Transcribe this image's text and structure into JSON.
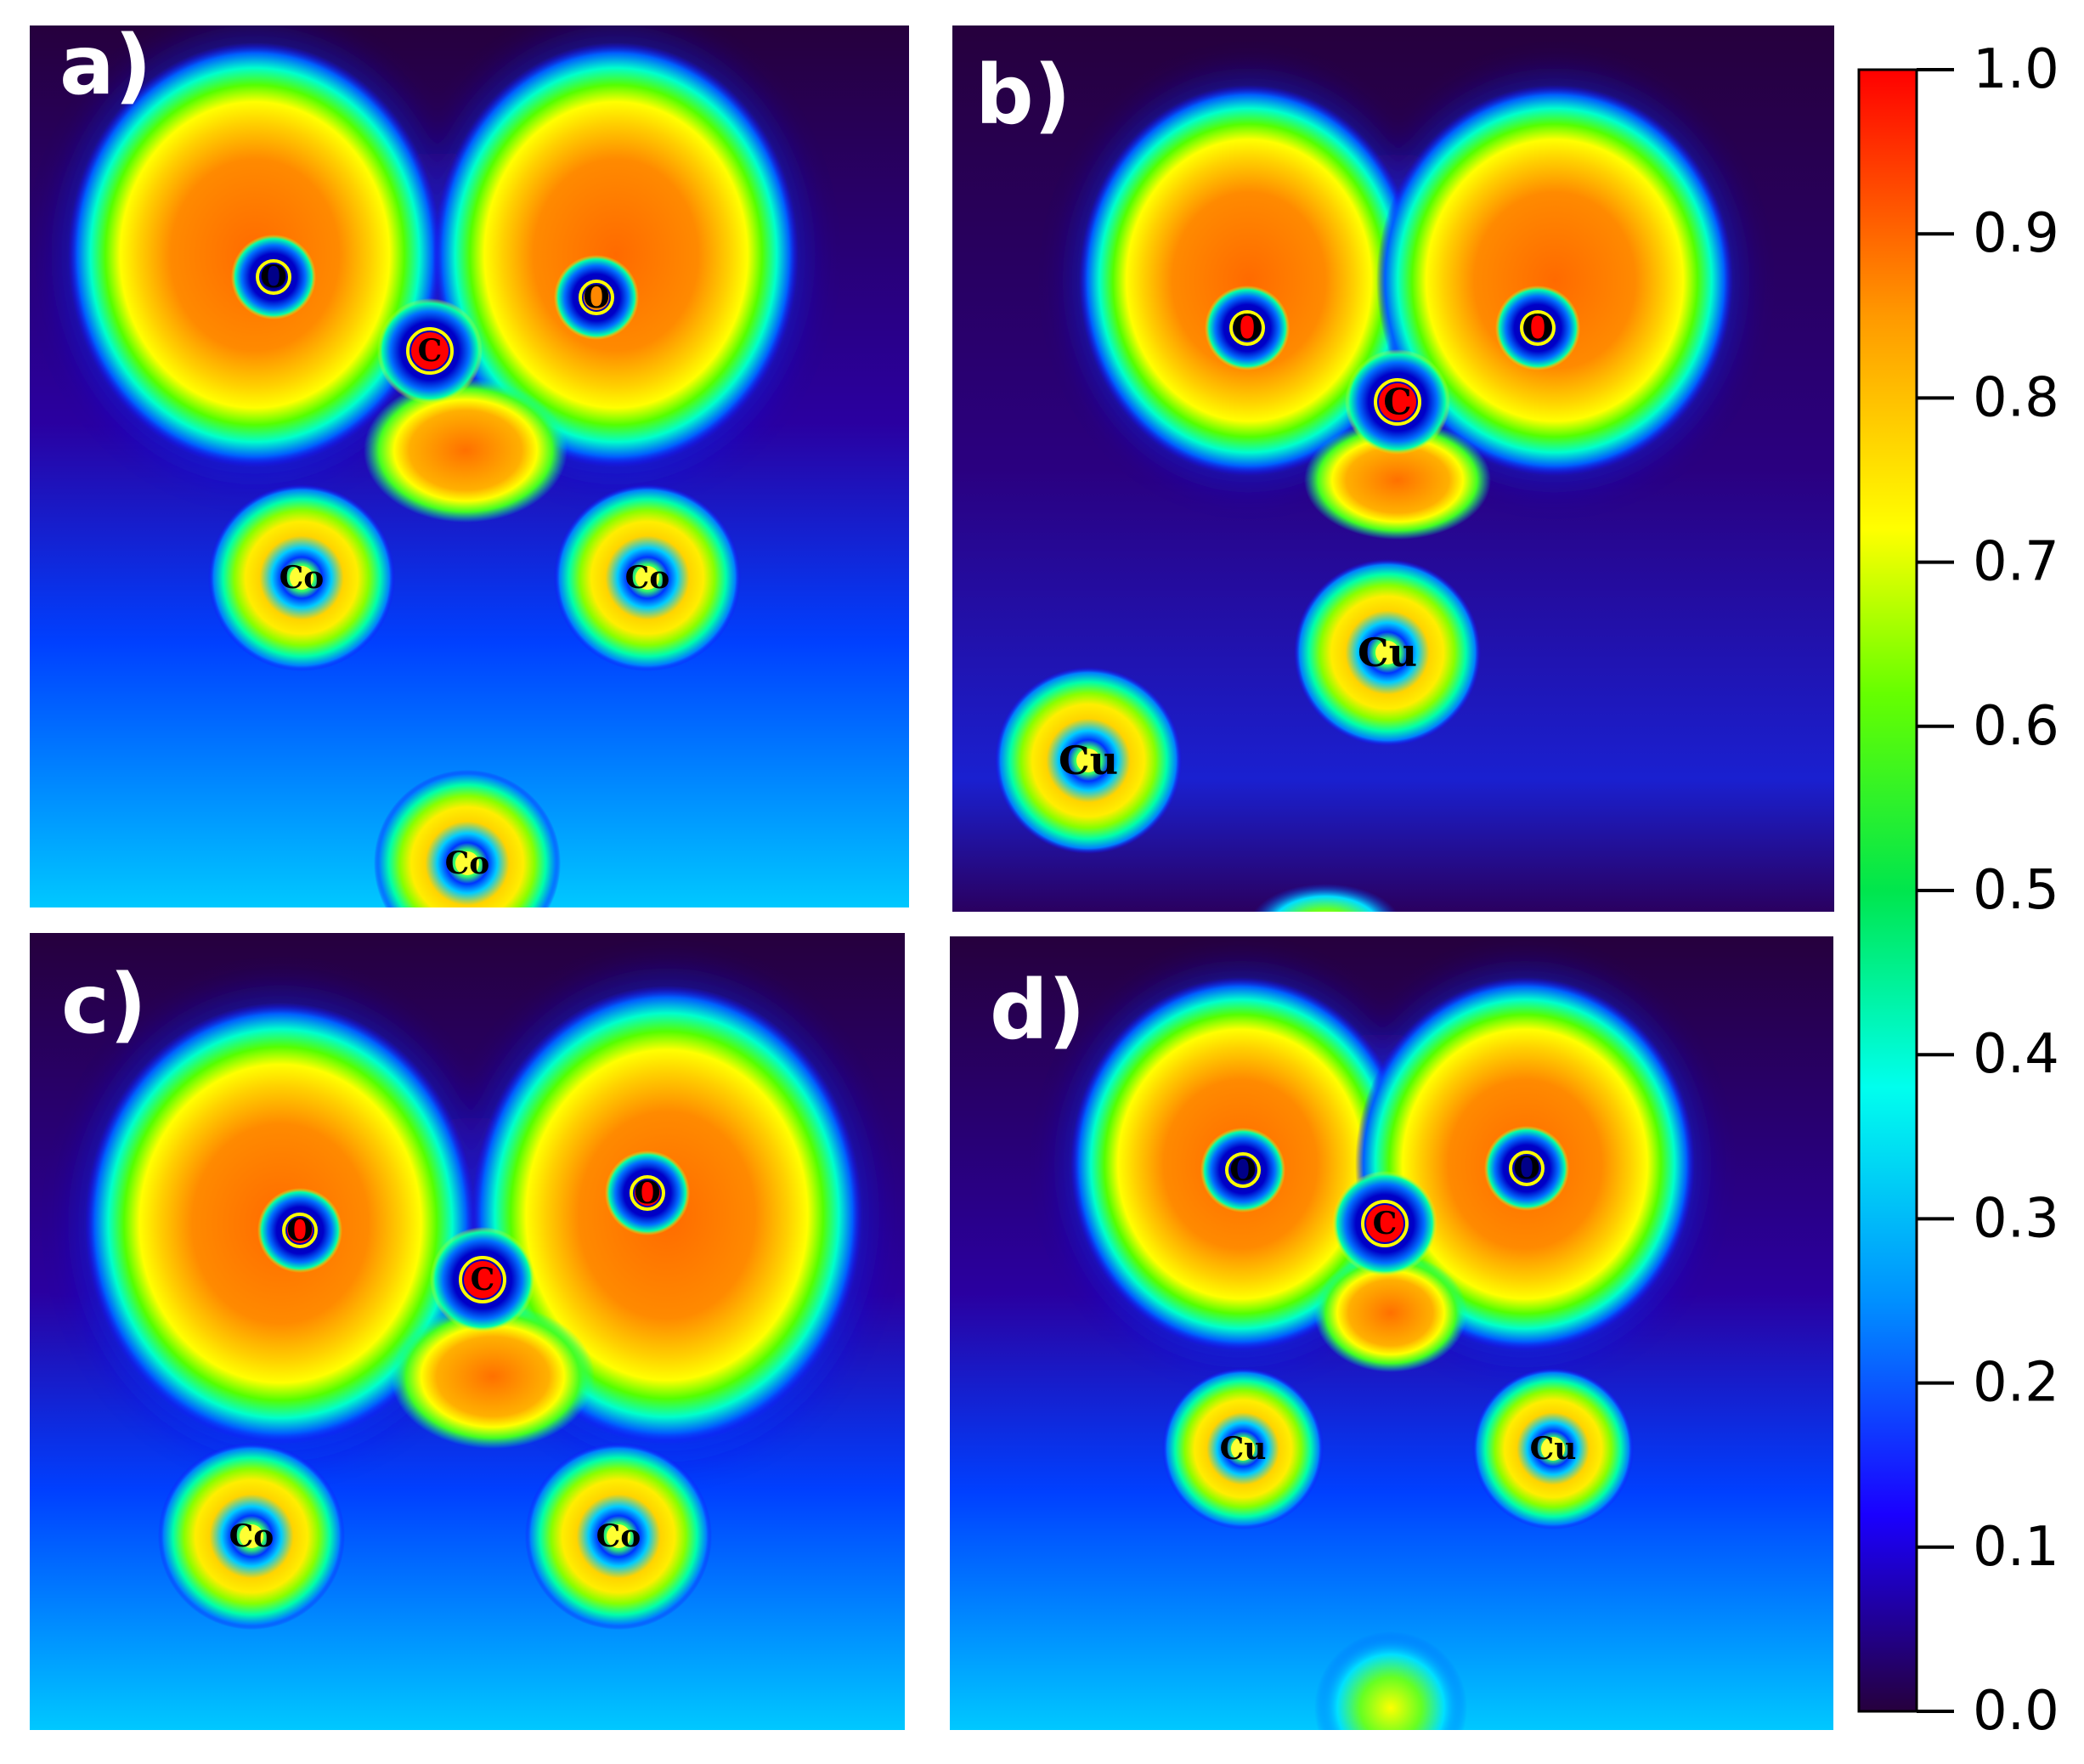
{
  "chart_data": {
    "type": "heatmap",
    "colorbar": {
      "min": 0.0,
      "max": 1.0,
      "ticks": [
        "0.0",
        "0.1",
        "0.2",
        "0.3",
        "0.4",
        "0.5",
        "0.6",
        "0.7",
        "0.8",
        "0.9",
        "1.0"
      ],
      "colormap": [
        "#26003d",
        "#1a00ff",
        "#00aaff",
        "#00ffee",
        "#00e64d",
        "#ffff00",
        "#ff9900",
        "#ff0000"
      ]
    },
    "panels": [
      {
        "label": "a)",
        "atoms": [
          {
            "symbol": "O",
            "core": "#000088"
          },
          {
            "symbol": "O",
            "core": "#ff8800"
          },
          {
            "symbol": "C",
            "core": "#ff0000"
          },
          {
            "symbol": "Co",
            "core": "#ffff33"
          },
          {
            "symbol": "Co",
            "core": "#ffff33"
          },
          {
            "symbol": "Co",
            "core": "#ffff33"
          }
        ]
      },
      {
        "label": "b)",
        "atoms": [
          {
            "symbol": "O",
            "core": "#ff0000"
          },
          {
            "symbol": "O",
            "core": "#ff0000"
          },
          {
            "symbol": "C",
            "core": "#ff0000"
          },
          {
            "symbol": "Cu",
            "core": "#ffff33"
          },
          {
            "symbol": "Cu",
            "core": "#ffff33"
          }
        ]
      },
      {
        "label": "c)",
        "atoms": [
          {
            "symbol": "O",
            "core": "#ff0000"
          },
          {
            "symbol": "O",
            "core": "#ff0000"
          },
          {
            "symbol": "C",
            "core": "#ff0000"
          },
          {
            "symbol": "Co",
            "core": "#ffff33"
          },
          {
            "symbol": "Co",
            "core": "#ffff33"
          }
        ]
      },
      {
        "label": "d)",
        "atoms": [
          {
            "symbol": "O",
            "core": "#000088"
          },
          {
            "symbol": "O",
            "core": "#000088"
          },
          {
            "symbol": "C",
            "core": "#ff0000"
          },
          {
            "symbol": "Cu",
            "core": "#ffff33"
          },
          {
            "symbol": "Cu",
            "core": "#ffff33"
          }
        ]
      }
    ]
  }
}
